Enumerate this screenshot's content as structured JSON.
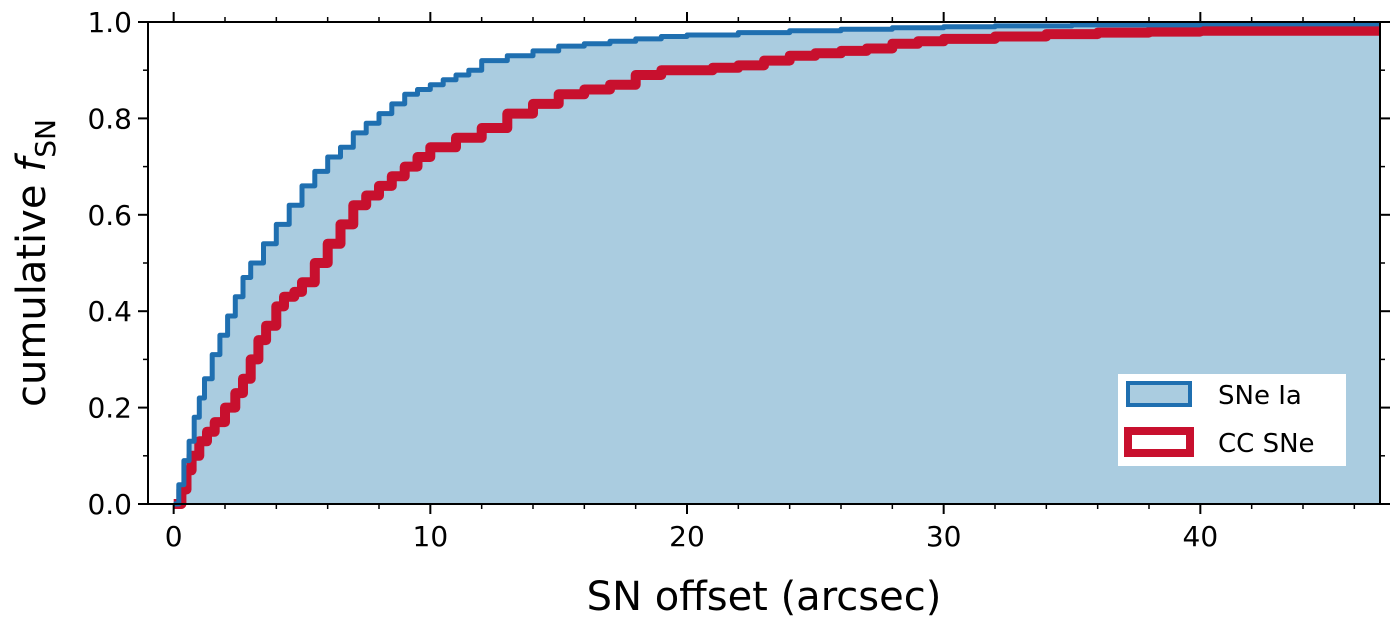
{
  "chart_data": {
    "type": "line",
    "xlabel": "SN offset (arcsec)",
    "ylabel_main": "cumulative ",
    "ylabel_italic": "f",
    "ylabel_sub": "SN",
    "xlim": [
      -1,
      47
    ],
    "ylim": [
      0,
      1
    ],
    "xticks": [
      0,
      10,
      20,
      30,
      40
    ],
    "xtick_labels": [
      "0",
      "10",
      "20",
      "30",
      "40"
    ],
    "yticks": [
      0,
      0.2,
      0.4,
      0.6,
      0.8,
      1.0
    ],
    "ytick_labels": [
      "0.0",
      "0.2",
      "0.4",
      "0.6",
      "0.8",
      "1.0"
    ],
    "grid": false,
    "legend_position": "bottom-right",
    "series": [
      {
        "name": "SNe Ia",
        "color": "#1f6fb0",
        "fill": "#aacce0",
        "step": true,
        "points": [
          [
            0,
            0
          ],
          [
            0.2,
            0.04
          ],
          [
            0.4,
            0.09
          ],
          [
            0.6,
            0.13
          ],
          [
            0.8,
            0.18
          ],
          [
            1.0,
            0.22
          ],
          [
            1.2,
            0.26
          ],
          [
            1.5,
            0.31
          ],
          [
            1.8,
            0.35
          ],
          [
            2.1,
            0.39
          ],
          [
            2.4,
            0.43
          ],
          [
            2.7,
            0.47
          ],
          [
            3.0,
            0.5
          ],
          [
            3.5,
            0.54
          ],
          [
            4.0,
            0.58
          ],
          [
            4.5,
            0.62
          ],
          [
            5.0,
            0.66
          ],
          [
            5.5,
            0.69
          ],
          [
            6.0,
            0.72
          ],
          [
            6.5,
            0.74
          ],
          [
            7.0,
            0.77
          ],
          [
            7.5,
            0.79
          ],
          [
            8.0,
            0.81
          ],
          [
            8.5,
            0.83
          ],
          [
            9.0,
            0.85
          ],
          [
            9.5,
            0.86
          ],
          [
            10.0,
            0.87
          ],
          [
            10.5,
            0.88
          ],
          [
            11.0,
            0.89
          ],
          [
            11.5,
            0.9
          ],
          [
            12.0,
            0.92
          ],
          [
            13.0,
            0.93
          ],
          [
            14.0,
            0.94
          ],
          [
            15.0,
            0.95
          ],
          [
            16.0,
            0.955
          ],
          [
            17.0,
            0.96
          ],
          [
            18.0,
            0.965
          ],
          [
            19.0,
            0.97
          ],
          [
            20.0,
            0.973
          ],
          [
            22.0,
            0.978
          ],
          [
            24.0,
            0.982
          ],
          [
            26.0,
            0.985
          ],
          [
            28.0,
            0.988
          ],
          [
            30.0,
            0.99
          ],
          [
            32.0,
            0.992
          ],
          [
            35.0,
            0.994
          ],
          [
            40.0,
            0.996
          ],
          [
            47.0,
            0.996
          ]
        ]
      },
      {
        "name": "CC SNe",
        "color": "#c8102e",
        "fill": "#ffffff",
        "step": true,
        "points": [
          [
            0,
            0
          ],
          [
            0.3,
            0.03
          ],
          [
            0.5,
            0.07
          ],
          [
            0.7,
            0.1
          ],
          [
            1.0,
            0.13
          ],
          [
            1.3,
            0.15
          ],
          [
            1.6,
            0.17
          ],
          [
            2.0,
            0.2
          ],
          [
            2.4,
            0.23
          ],
          [
            2.7,
            0.26
          ],
          [
            3.0,
            0.3
          ],
          [
            3.3,
            0.34
          ],
          [
            3.6,
            0.37
          ],
          [
            4.0,
            0.41
          ],
          [
            4.3,
            0.43
          ],
          [
            4.7,
            0.44
          ],
          [
            5.0,
            0.46
          ],
          [
            5.5,
            0.5
          ],
          [
            6.0,
            0.54
          ],
          [
            6.5,
            0.58
          ],
          [
            7.0,
            0.62
          ],
          [
            7.5,
            0.64
          ],
          [
            8.0,
            0.66
          ],
          [
            8.5,
            0.68
          ],
          [
            9.0,
            0.7
          ],
          [
            9.5,
            0.72
          ],
          [
            10.0,
            0.74
          ],
          [
            11.0,
            0.76
          ],
          [
            12.0,
            0.78
          ],
          [
            13.0,
            0.81
          ],
          [
            14.0,
            0.83
          ],
          [
            15.0,
            0.85
          ],
          [
            16.0,
            0.86
          ],
          [
            17.0,
            0.87
          ],
          [
            18.0,
            0.89
          ],
          [
            19.0,
            0.9
          ],
          [
            20.0,
            0.9
          ],
          [
            21.0,
            0.905
          ],
          [
            22.0,
            0.91
          ],
          [
            23.0,
            0.92
          ],
          [
            24.0,
            0.93
          ],
          [
            25.0,
            0.935
          ],
          [
            26.0,
            0.94
          ],
          [
            27.0,
            0.945
          ],
          [
            28.0,
            0.955
          ],
          [
            29.0,
            0.96
          ],
          [
            30.0,
            0.965
          ],
          [
            32.0,
            0.97
          ],
          [
            34.0,
            0.975
          ],
          [
            36.0,
            0.978
          ],
          [
            38.0,
            0.98
          ],
          [
            40.0,
            0.982
          ],
          [
            47.0,
            0.982
          ]
        ]
      }
    ]
  }
}
